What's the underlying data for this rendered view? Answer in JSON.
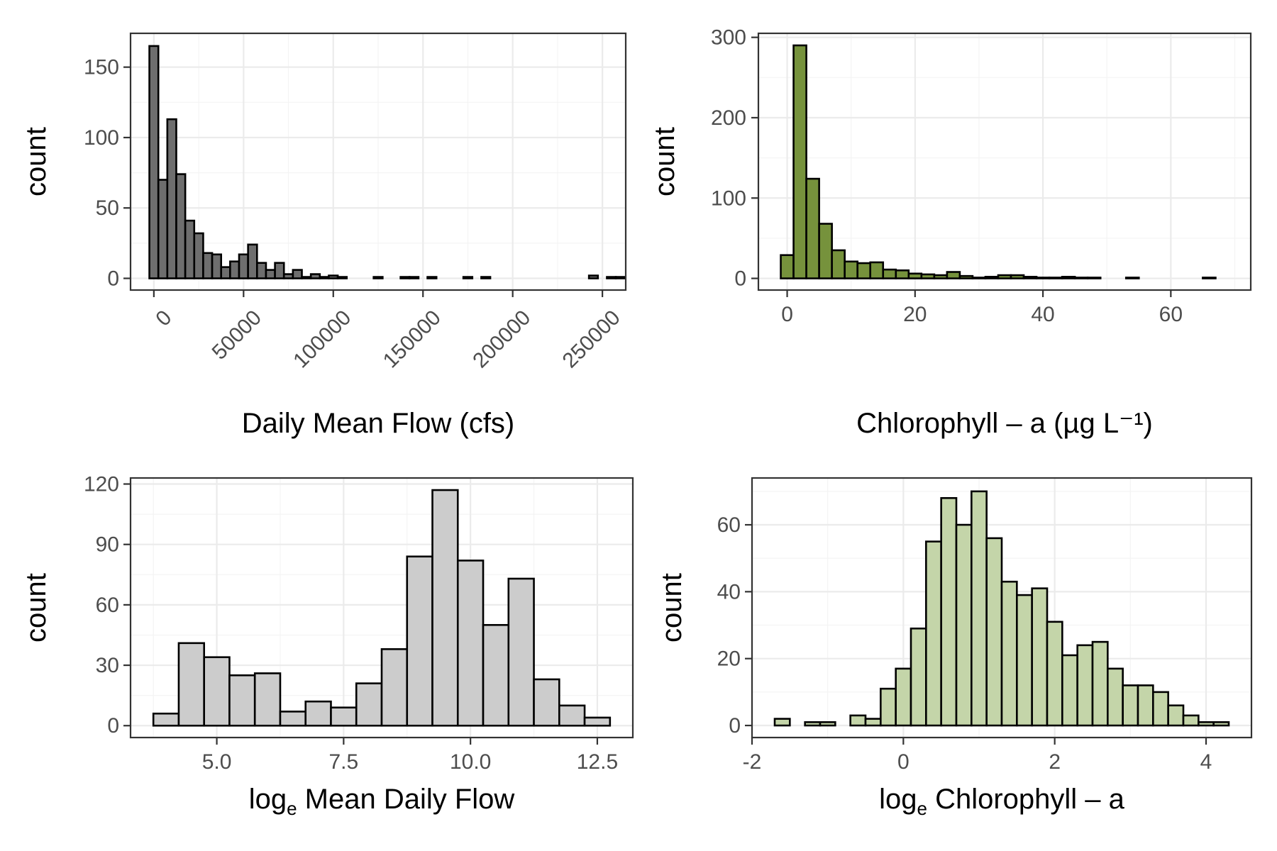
{
  "chart_data": [
    {
      "type": "bar",
      "panel": "top-left",
      "fill": "#6e6e6e",
      "xlabel": "Daily Mean Flow (cfs)",
      "ylabel": "count",
      "x_ticks": [
        0,
        50000,
        100000,
        150000,
        200000,
        250000
      ],
      "x_tick_labels": [
        "0",
        "50000",
        "100000",
        "150000",
        "200000",
        "250000"
      ],
      "x_tick_rotation": -45,
      "y_ticks": [
        0,
        50,
        100,
        150
      ],
      "y_tick_labels": [
        "0",
        "50",
        "100",
        "150"
      ],
      "xlim": [
        -13000,
        263000
      ],
      "ylim": [
        -8.3,
        174
      ],
      "grid": true,
      "bin_width": 5000,
      "bin_start": -2500,
      "values": [
        165,
        70,
        113,
        74,
        41,
        32,
        18,
        17,
        8,
        12,
        17,
        24,
        11,
        6,
        11,
        3,
        6,
        1,
        3,
        1,
        2,
        1,
        0,
        0,
        0,
        1,
        0,
        0,
        1,
        1,
        0,
        1,
        0,
        0,
        0,
        1,
        0,
        1,
        0,
        0,
        0,
        0,
        0,
        0,
        0,
        0,
        0,
        0,
        0,
        2,
        0,
        1,
        1
      ]
    },
    {
      "type": "bar",
      "panel": "top-right",
      "fill": "#76923c",
      "xlabel": "Chlorophyll – a (µg L⁻¹)",
      "ylabel": "count",
      "x_ticks": [
        0,
        20,
        40,
        60
      ],
      "x_tick_labels": [
        "0",
        "20",
        "40",
        "60"
      ],
      "y_ticks": [
        0,
        100,
        200,
        300
      ],
      "y_tick_labels": [
        "0",
        "100",
        "200",
        "300"
      ],
      "xlim": [
        -4.5,
        72.5
      ],
      "ylim": [
        -14.5,
        305
      ],
      "grid": true,
      "bin_width": 2,
      "bin_start": -1,
      "values": [
        29,
        290,
        124,
        68,
        35,
        21,
        19,
        20,
        11,
        10,
        6,
        5,
        4,
        8,
        3,
        1,
        2,
        4,
        4,
        2,
        1,
        1,
        2,
        1,
        1,
        0,
        0,
        1,
        0,
        0,
        0,
        0,
        0,
        1,
        0
      ]
    },
    {
      "type": "bar",
      "panel": "bottom-left",
      "fill": "#cccccc",
      "xlabel": "log_e Mean Daily Flow",
      "xlabel_parts": {
        "prefix": "log",
        "sub": "e",
        "suffix": " Mean Daily Flow"
      },
      "ylabel": "count",
      "x_ticks": [
        5.0,
        7.5,
        10.0,
        12.5
      ],
      "x_tick_labels": [
        "5.0",
        "7.5",
        "10.0",
        "12.5"
      ],
      "y_ticks": [
        0,
        30,
        60,
        90,
        120
      ],
      "y_tick_labels": [
        "0",
        "30",
        "60",
        "90",
        "120"
      ],
      "xlim": [
        3.3,
        13.2
      ],
      "ylim": [
        -5.9,
        123
      ],
      "grid": true,
      "bin_width": 0.5,
      "bin_start": 3.75,
      "values": [
        6,
        41,
        34,
        25,
        26,
        7,
        12,
        9,
        21,
        38,
        84,
        117,
        82,
        50,
        73,
        23,
        10,
        4
      ]
    },
    {
      "type": "bar",
      "panel": "bottom-right",
      "fill": "#c4d5a9",
      "xlabel": "log_e Chlorophyll – a",
      "xlabel_parts": {
        "prefix": "log",
        "sub": "e",
        "suffix": " Chlorophyll – a"
      },
      "ylabel": "count",
      "x_ticks": [
        -2,
        0,
        2,
        4
      ],
      "x_tick_labels": [
        "-2",
        "0",
        "2",
        "4"
      ],
      "y_ticks": [
        0,
        20,
        40,
        60
      ],
      "y_tick_labels": [
        "0",
        "20",
        "40",
        "60"
      ],
      "xlim": [
        -2.0,
        4.6
      ],
      "ylim": [
        -3.6,
        74
      ],
      "grid": true,
      "bin_width": 0.2,
      "bin_start": -1.7,
      "values": [
        2,
        0,
        1,
        1,
        0,
        3,
        2,
        11,
        17,
        29,
        55,
        68,
        60,
        70,
        56,
        43,
        39,
        41,
        31,
        21,
        24,
        25,
        17,
        12,
        12,
        10,
        6,
        3,
        1,
        1
      ]
    }
  ]
}
